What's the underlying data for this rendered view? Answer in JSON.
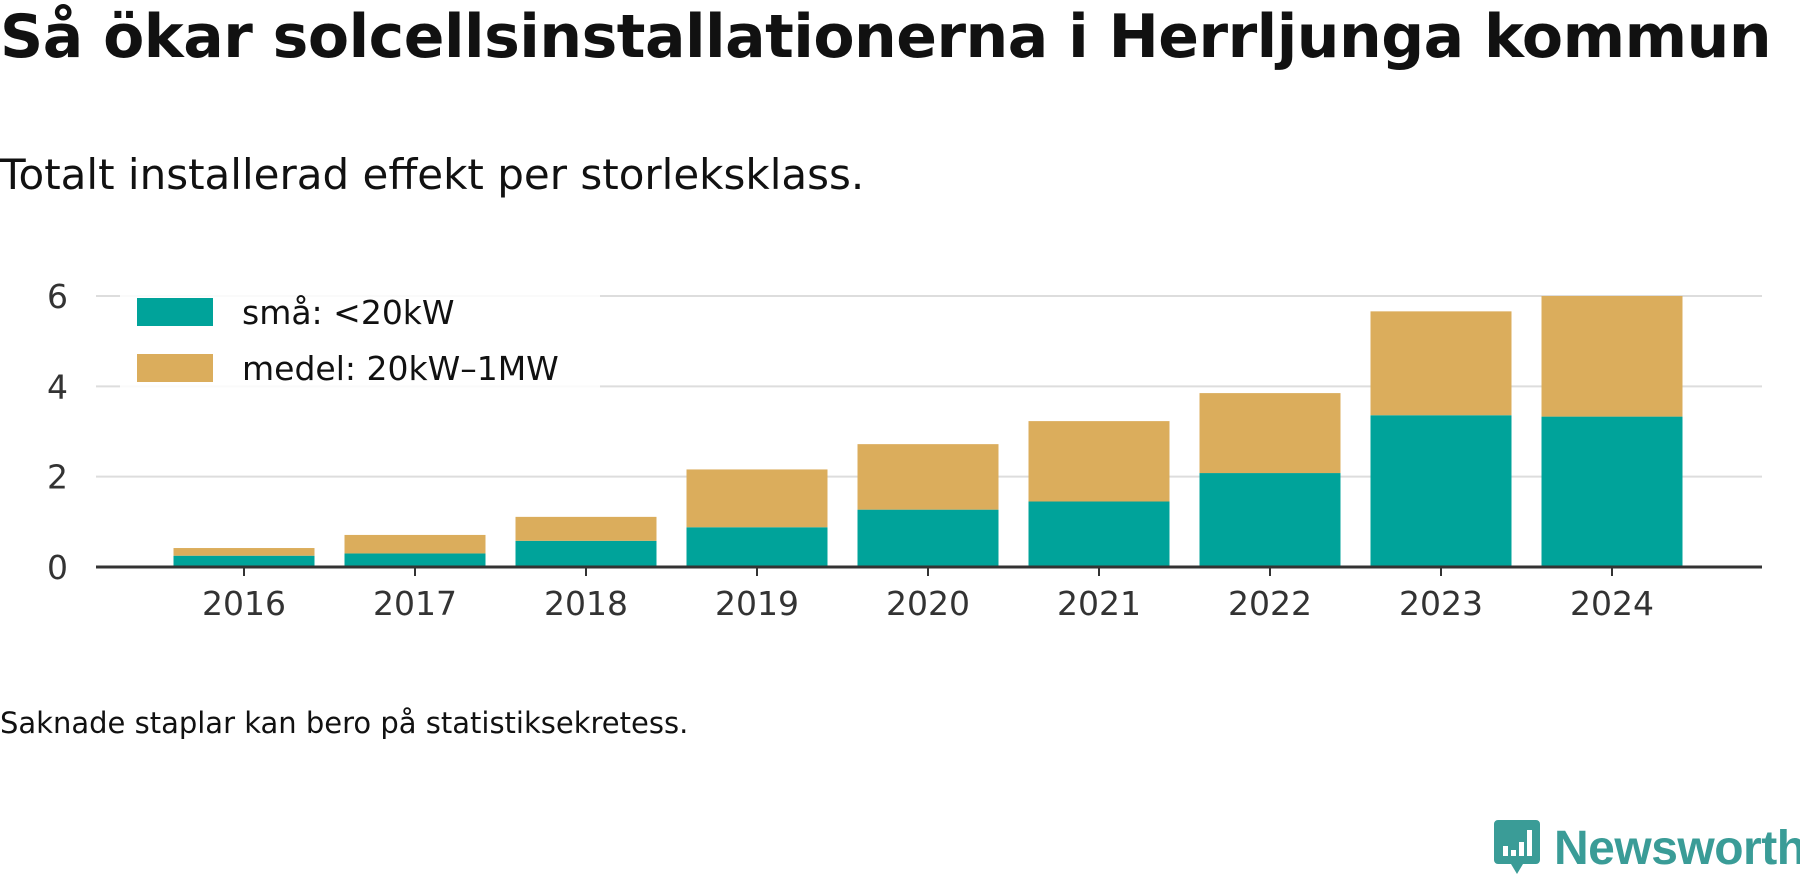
{
  "title": "Så ökar solcellsinstallationerna i Herrljunga kommun",
  "subtitle": "Totalt installerad effekt per storleksklass.",
  "note": "Saknade staplar kan bero på statistiksekretess.",
  "brand": {
    "name": "Newsworthy",
    "color": "#3a9c97"
  },
  "chart_data": {
    "type": "bar",
    "stacked": true,
    "categories": [
      "2016",
      "2017",
      "2018",
      "2019",
      "2020",
      "2021",
      "2022",
      "2023",
      "2024"
    ],
    "series": [
      {
        "name": "små: <20kW",
        "color": "#00a39a",
        "values": [
          0.25,
          0.3,
          0.58,
          0.88,
          1.27,
          1.45,
          2.08,
          3.36,
          3.33
        ]
      },
      {
        "name": "medel: 20kW–1MW",
        "color": "#dbad5c",
        "values": [
          0.17,
          0.41,
          0.53,
          1.28,
          1.45,
          1.78,
          1.77,
          2.3,
          2.67
        ]
      }
    ],
    "yticks": [
      0,
      2,
      4,
      6
    ],
    "ylim": [
      0,
      6
    ],
    "xlabel": "",
    "ylabel": "",
    "grid": true,
    "legend_position": "top-left"
  }
}
